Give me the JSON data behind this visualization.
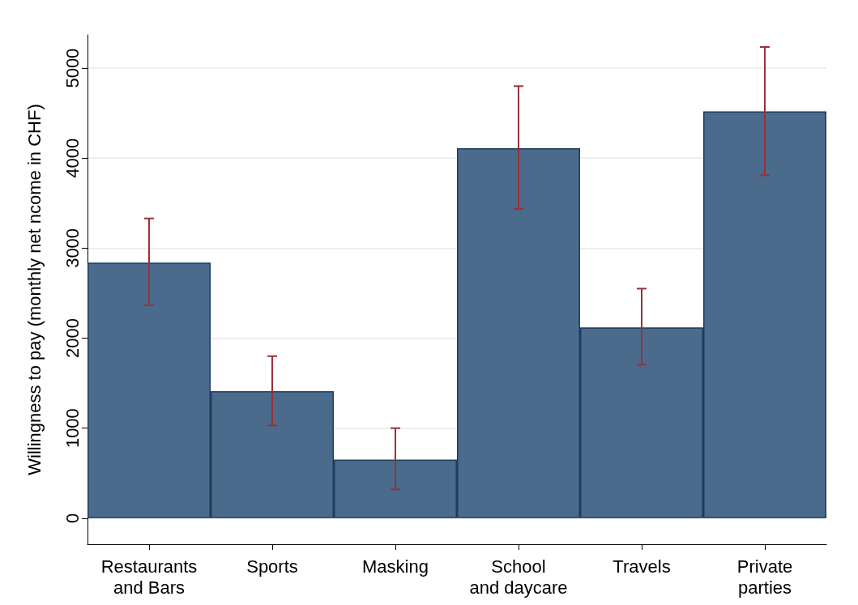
{
  "chart_data": {
    "type": "bar",
    "ylabel": "Willingness to pay (monthly net ncome in CHF)",
    "categories": [
      "Restaurants\nand Bars",
      "Sports",
      "Masking",
      "School\nand daycare",
      "Travels",
      "Private\nparties"
    ],
    "values": [
      2840,
      1410,
      650,
      4110,
      2120,
      4520
    ],
    "errors": [
      [
        2365,
        3330
      ],
      [
        1030,
        1800
      ],
      [
        320,
        1000
      ],
      [
        3435,
        4800
      ],
      [
        1705,
        2550
      ],
      [
        3810,
        5235
      ]
    ],
    "color": "#4a6b8c",
    "ylim": [
      -290,
      5370
    ],
    "yticks": [
      0,
      1000,
      2000,
      3000,
      4000,
      5000
    ],
    "grid": "y"
  }
}
